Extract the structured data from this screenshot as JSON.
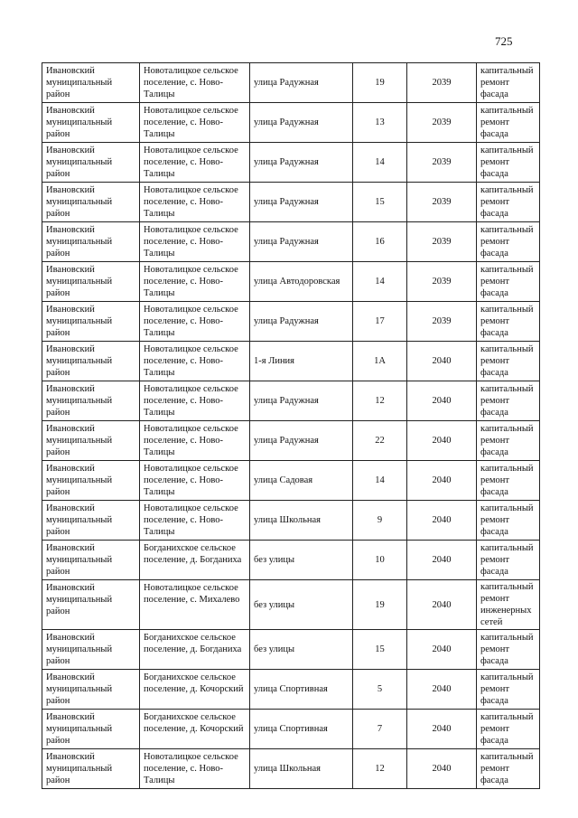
{
  "page_number": "725",
  "rows": [
    [
      "Ивановский муниципальный район",
      "Новоталицкое сельское поселение, с. Ново-Талицы",
      "улица Радужная",
      "19",
      "2039",
      "капитальный ремонт фасада"
    ],
    [
      "Ивановский муниципальный район",
      "Новоталицкое сельское поселение, с. Ново-Талицы",
      "улица Радужная",
      "13",
      "2039",
      "капитальный ремонт фасада"
    ],
    [
      "Ивановский муниципальный район",
      "Новоталицкое сельское поселение, с. Ново-Талицы",
      "улица Радужная",
      "14",
      "2039",
      "капитальный ремонт фасада"
    ],
    [
      "Ивановский муниципальный район",
      "Новоталицкое сельское поселение, с. Ново-Талицы",
      "улица Радужная",
      "15",
      "2039",
      "капитальный ремонт фасада"
    ],
    [
      "Ивановский муниципальный район",
      "Новоталицкое сельское поселение, с. Ново-Талицы",
      "улица Радужная",
      "16",
      "2039",
      "капитальный ремонт фасада"
    ],
    [
      "Ивановский муниципальный район",
      "Новоталицкое сельское поселение, с. Ново-Талицы",
      "улица Автодоровская",
      "14",
      "2039",
      "капитальный ремонт фасада"
    ],
    [
      "Ивановский муниципальный район",
      "Новоталицкое сельское поселение, с. Ново-Талицы",
      "улица Радужная",
      "17",
      "2039",
      "капитальный ремонт фасада"
    ],
    [
      "Ивановский муниципальный район",
      "Новоталицкое сельское поселение, с. Ново-Талицы",
      "1-я Линия",
      "1А",
      "2040",
      "капитальный ремонт фасада"
    ],
    [
      "Ивановский муниципальный район",
      "Новоталицкое сельское поселение, с. Ново-Талицы",
      "улица Радужная",
      "12",
      "2040",
      "капитальный ремонт фасада"
    ],
    [
      "Ивановский муниципальный район",
      "Новоталицкое сельское поселение, с. Ново-Талицы",
      "улица Радужная",
      "22",
      "2040",
      "капитальный ремонт фасада"
    ],
    [
      "Ивановский муниципальный район",
      "Новоталицкое сельское поселение, с. Ново-Талицы",
      "улица Садовая",
      "14",
      "2040",
      "капитальный ремонт фасада"
    ],
    [
      "Ивановский муниципальный район",
      "Новоталицкое сельское поселение, с. Ново-Талицы",
      "улица Школьная",
      "9",
      "2040",
      "капитальный ремонт фасада"
    ],
    [
      "Ивановский муниципальный район",
      "Богданихское сельское поселение, д. Богданиха",
      "без улицы",
      "10",
      "2040",
      "капитальный ремонт фасада"
    ],
    [
      "Ивановский муниципальный район",
      "Новоталицкое сельское поселение, с. Михалево",
      "без улицы",
      "19",
      "2040",
      "капитальный ремонт инженерных сетей"
    ],
    [
      "Ивановский муниципальный район",
      "Богданихское сельское поселение, д. Богданиха",
      "без улицы",
      "15",
      "2040",
      "капитальный ремонт фасада"
    ],
    [
      "Ивановский муниципальный район",
      "Богданихское сельское поселение, д. Кочорский",
      "улица Спортивная",
      "5",
      "2040",
      "капитальный ремонт фасада"
    ],
    [
      "Ивановский муниципальный район",
      "Богданихское сельское поселение, д. Кочорский",
      "улица Спортивная",
      "7",
      "2040",
      "капитальный ремонт фасада"
    ],
    [
      "Ивановский муниципальный район",
      "Новоталицкое сельское поселение, с. Ново-Талицы",
      "улица Школьная",
      "12",
      "2040",
      "капитальный ремонт фасада"
    ]
  ]
}
